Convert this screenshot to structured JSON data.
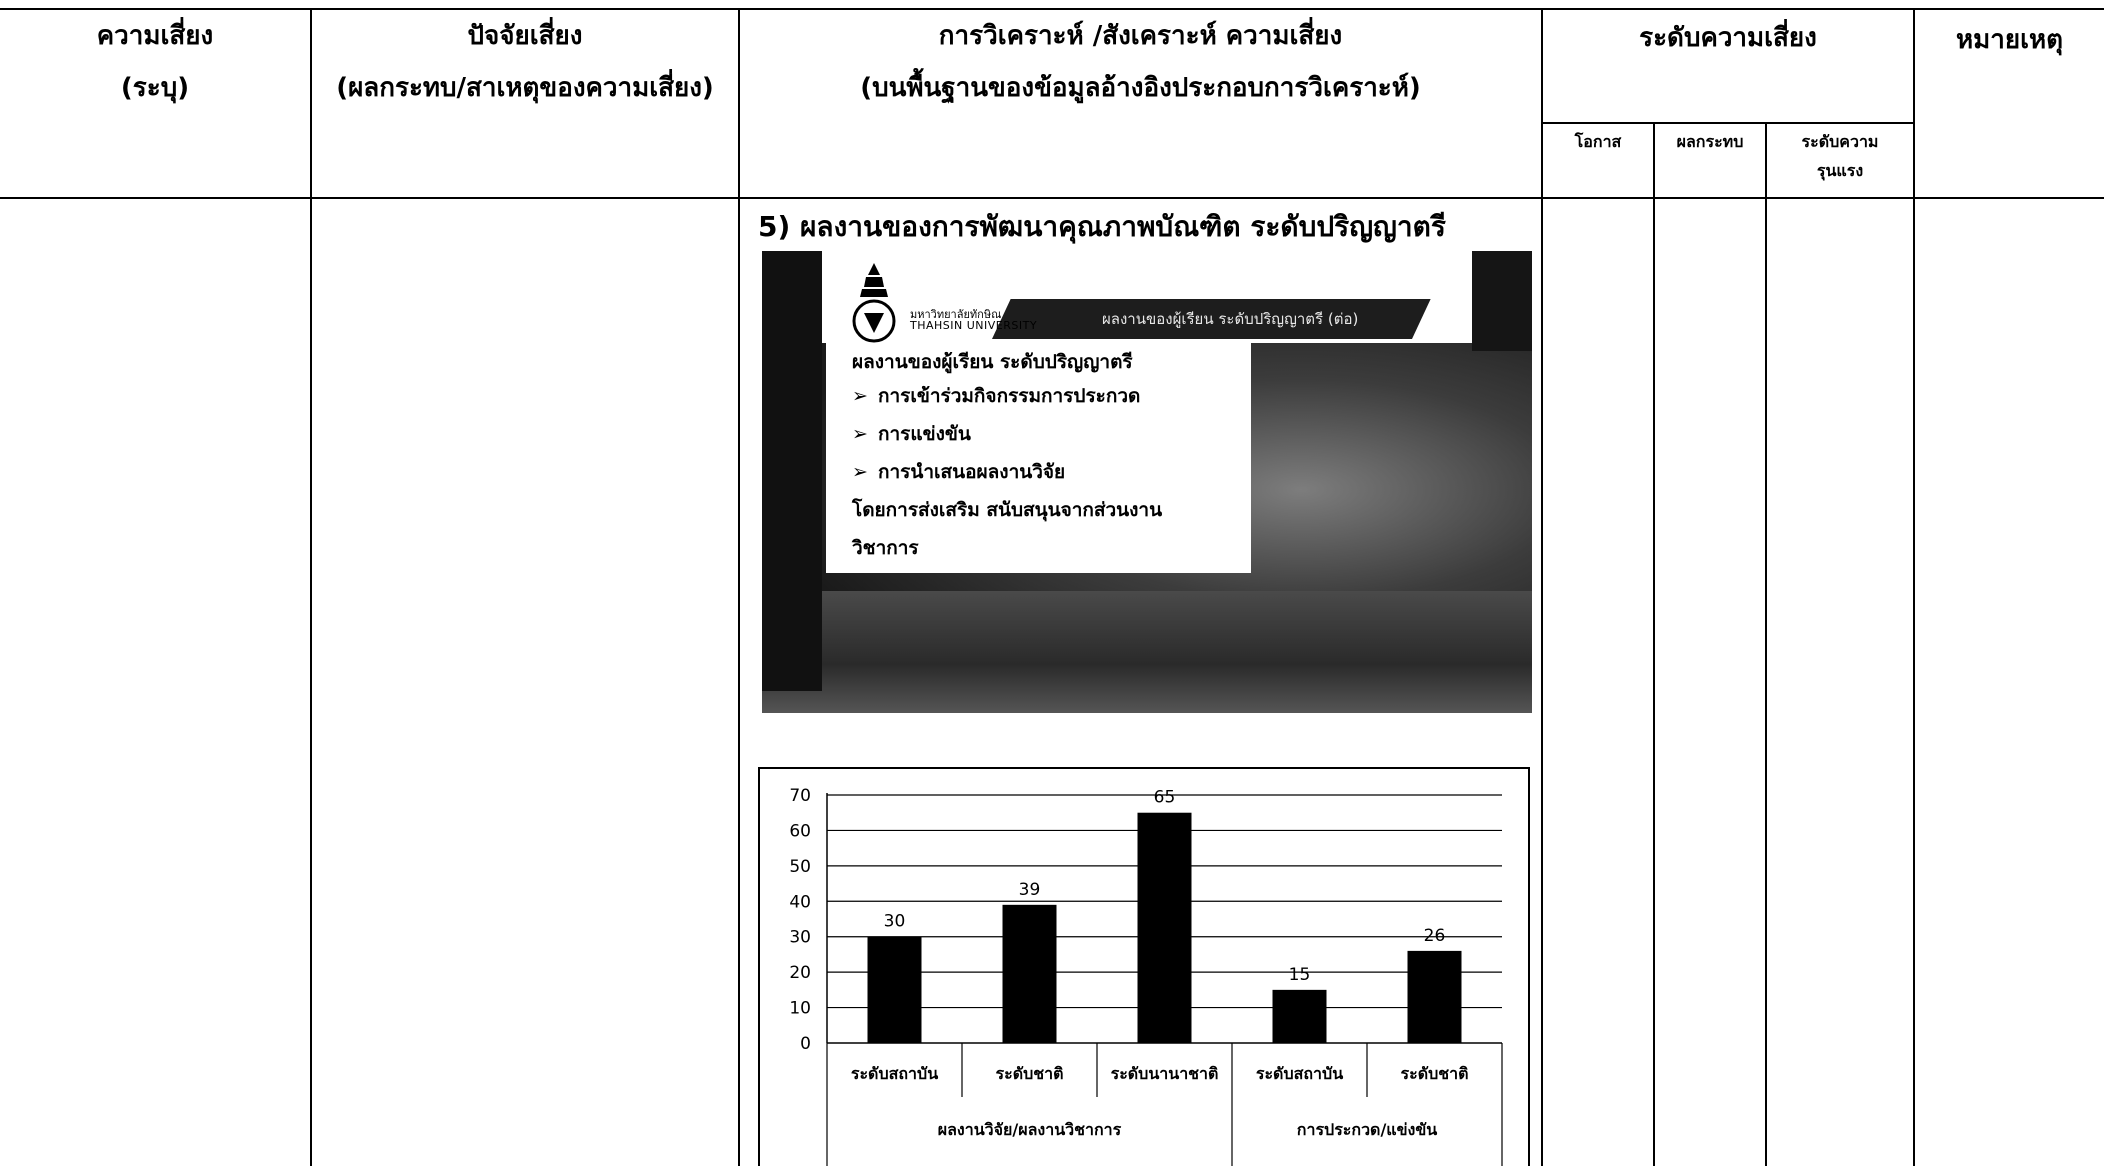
{
  "header": {
    "col_risk": [
      "ความเสี่ยง",
      "(ระบุ)"
    ],
    "col_factor": [
      "ปัจจัยเสี่ยง",
      "(ผลกระทบ/สาเหตุของความเสี่ยง)"
    ],
    "col_analysis": [
      "การวิเคราะห์ /สังเคราะห์ ความเสี่ยง",
      "(บนพื้นฐานของข้อมูลอ้างอิงประกอบการวิเคราะห์)"
    ],
    "col_level": "ระดับความเสี่ยง",
    "col_note": "หมายเหตุ",
    "sub_chance": "โอกาส",
    "sub_impact": "ผลกระทบ",
    "sub_severity": [
      "ระดับความ",
      "รุนแรง"
    ]
  },
  "section_heading": "5) ผลงานของการพัฒนาคุณภาพบัณฑิต ระดับปริญญาตรี",
  "slide": {
    "logo_th": "มหาวิทยาลัยทักษิณ",
    "logo_en": "THAHSIN UNIVERSITY",
    "band_title": "ผลงานของผู้เรียน ระดับปริญญาตรี (ต่อ)",
    "card_title": "ผลงานของผู้เรียน ระดับปริญญาตรี",
    "items": [
      "การเข้าร่วมกิจกรรมการประกวด",
      "การแข่งขัน",
      "การนำเสนอผลงานวิจัย"
    ],
    "footer_lines": [
      "โดยการส่งเสริม สนับสนุนจากส่วนงาน",
      "วิชาการ"
    ],
    "arrow_glyph": "➢"
  },
  "chart_data": {
    "type": "bar",
    "categories": [
      "ระดับสถาบัน",
      "ระดับชาติ",
      "ระดับนานาชาติ",
      "ระดับสถาบัน",
      "ระดับชาติ"
    ],
    "groups": [
      {
        "label": "ผลงานวิจัย/ผลงานวิชาการ",
        "categories": [
          "ระดับสถาบัน",
          "ระดับชาติ",
          "ระดับนานาชาติ"
        ]
      },
      {
        "label": "การประกวด/แข่งขัน",
        "categories": [
          "ระดับสถาบัน",
          "ระดับชาติ"
        ]
      }
    ],
    "values": [
      30,
      39,
      65,
      15,
      26
    ],
    "ylim": [
      0,
      70
    ],
    "yticks": [
      "0",
      "10",
      "20",
      "30",
      "40",
      "50",
      "60",
      "70"
    ],
    "grid": true,
    "bar_color": "#000000"
  }
}
